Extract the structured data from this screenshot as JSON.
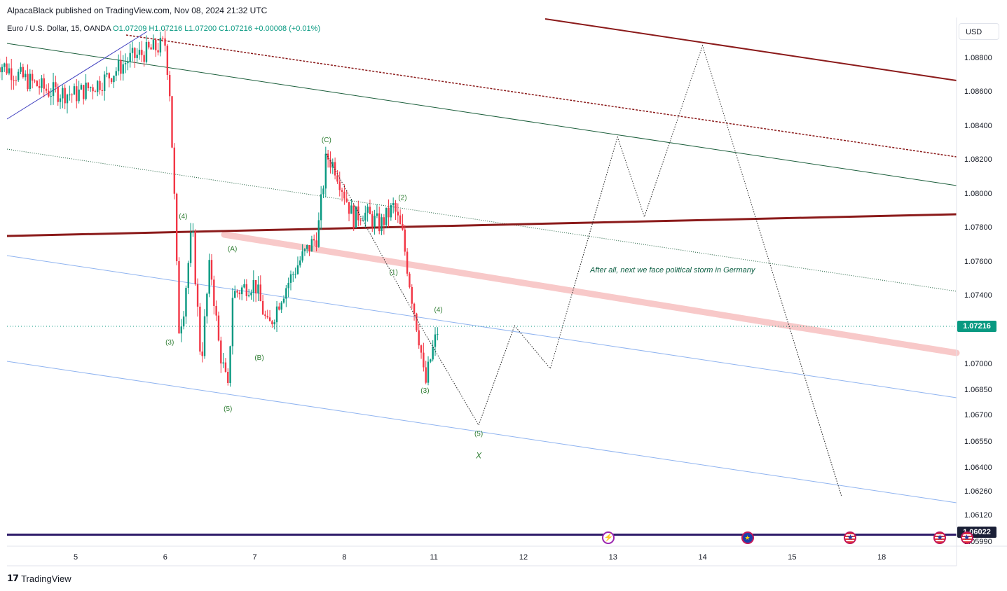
{
  "publisher": "AlpacaBlack published on TradingView.com, Nov 08, 2024 21:32 UTC",
  "symbol_line": {
    "symbol": "Euro / U.S. Dollar, 15, OANDA",
    "open": "O1.07209",
    "high": "H1.07216",
    "low": "L1.07200",
    "close": "C1.07216",
    "change": "+0.00008 (+0.01%)"
  },
  "currency": "USD",
  "last_price": "1.07216",
  "support_price": "1.06022",
  "annotation": "After all, next we face political storm in Germany",
  "brand": "TradingView",
  "events": [
    {
      "icon": "flash-icon",
      "glyph": "⚡",
      "x": 10.85
    },
    {
      "icon": "eu-flag-icon",
      "glyph": "★",
      "x": 12.4
    },
    {
      "icon": "us-flag-icon",
      "glyph": "★",
      "x": 13.55
    },
    {
      "icon": "us-flag-icon",
      "glyph": "★",
      "x": 14.55
    },
    {
      "icon": "us-flag-icon",
      "glyph": "★",
      "x": 14.85
    }
  ],
  "colors": {
    "up": "#089981",
    "down": "#f23645",
    "channel_dark_red": "#8b1a1a",
    "channel_green": "#1b5e3b",
    "channel_blue": "#90b4f0",
    "pink_band": "#f8c9c9",
    "support": "#2a1766",
    "wave_label": "#2e7d32"
  },
  "chart_data": {
    "type": "candlestick",
    "title": "Euro / U.S. Dollar, 15, OANDA",
    "x_tick_labels": [
      "5",
      "6",
      "7",
      "8",
      "11",
      "12",
      "13",
      "14",
      "15",
      "18"
    ],
    "x_tick_values": [
      4.9,
      5.9,
      6.9,
      7.9,
      8.9,
      9.9,
      10.9,
      11.9,
      12.9,
      13.9
    ],
    "y_tick_labels": [
      "1.08800",
      "1.08600",
      "1.08400",
      "1.08200",
      "1.08000",
      "1.07800",
      "1.07600",
      "1.07400",
      "1.07000",
      "1.06850",
      "1.06700",
      "1.06550",
      "1.06400",
      "1.06260",
      "1.06120",
      "1.05990"
    ],
    "y_range_note": "vertical axis is non-linear at the bottom; ticks shown as printed",
    "y_tick_values": [
      1.088,
      1.086,
      1.084,
      1.082,
      1.08,
      1.078,
      1.076,
      1.074,
      1.07,
      1.0685,
      1.067,
      1.0655,
      1.064,
      1.0626,
      1.0612,
      1.0599
    ],
    "price_path": [
      [
        4.0,
        1.0878
      ],
      [
        4.3,
        1.0868
      ],
      [
        4.6,
        1.086
      ],
      [
        4.9,
        1.0858
      ],
      [
        5.2,
        1.0866
      ],
      [
        5.5,
        1.0879
      ],
      [
        5.9,
        1.0888
      ],
      [
        5.95,
        1.086
      ],
      [
        6.0,
        1.08
      ],
      [
        6.05,
        1.072
      ],
      [
        6.1,
        1.073
      ],
      [
        6.2,
        1.078
      ],
      [
        6.3,
        1.07
      ],
      [
        6.4,
        1.076
      ],
      [
        6.5,
        1.071
      ],
      [
        6.6,
        1.0684
      ],
      [
        6.65,
        1.074
      ],
      [
        6.8,
        1.0745
      ],
      [
        6.9,
        1.0747
      ],
      [
        7.05,
        1.072
      ],
      [
        7.2,
        1.074
      ],
      [
        7.4,
        1.076
      ],
      [
        7.6,
        1.0775
      ],
      [
        7.7,
        1.0822
      ],
      [
        7.8,
        1.0815
      ],
      [
        7.9,
        1.08
      ],
      [
        8.0,
        1.0785
      ],
      [
        8.1,
        1.0789
      ],
      [
        8.3,
        1.0781
      ],
      [
        8.45,
        1.0792
      ],
      [
        8.55,
        1.0775
      ],
      [
        8.65,
        1.074
      ],
      [
        8.75,
        1.071
      ],
      [
        8.8,
        1.0686
      ],
      [
        8.85,
        1.07
      ],
      [
        8.95,
        1.0721
      ]
    ],
    "projection_path": [
      [
        7.7,
        1.0823
      ],
      [
        8.75,
        1.0722
      ],
      [
        9.4,
        1.0664
      ],
      [
        9.8,
        1.0722
      ],
      [
        10.2,
        1.0697
      ],
      [
        10.95,
        1.0833
      ],
      [
        11.25,
        1.0786
      ],
      [
        11.9,
        1.0887
      ],
      [
        13.45,
        1.0623
      ]
    ],
    "wave_labels": [
      {
        "text": "(4)",
        "x": 6.1,
        "y": 1.0785
      },
      {
        "text": "(3)",
        "x": 5.95,
        "y": 1.0711
      },
      {
        "text": "(5)",
        "x": 6.6,
        "y": 1.0672
      },
      {
        "text": "(A)",
        "x": 6.65,
        "y": 1.0766
      },
      {
        "text": "(B)",
        "x": 6.95,
        "y": 1.0702
      },
      {
        "text": "(C)",
        "x": 7.7,
        "y": 1.083
      },
      {
        "text": "(2)",
        "x": 8.55,
        "y": 1.0796
      },
      {
        "text": "(1)",
        "x": 8.45,
        "y": 1.0752
      },
      {
        "text": "(4)",
        "x": 8.95,
        "y": 1.073
      },
      {
        "text": "(3)",
        "x": 8.8,
        "y": 1.0683
      },
      {
        "text": "(5)",
        "x": 9.4,
        "y": 1.0658
      },
      {
        "text": "X",
        "x": 9.4,
        "y": 1.0645
      }
    ],
    "last_price": 1.07216,
    "support_level": 1.06022,
    "grid": false,
    "legend": "none"
  }
}
